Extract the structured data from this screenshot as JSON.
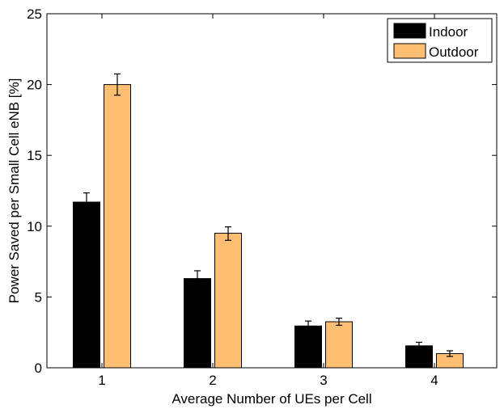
{
  "chart_data": {
    "type": "bar",
    "title": "",
    "xlabel": "Average Number of UEs per Cell",
    "ylabel": "Power Saved per Small Cell eNB [%]",
    "categories": [
      "1",
      "2",
      "3",
      "4"
    ],
    "ylim": [
      0,
      25
    ],
    "yticks": [
      "0",
      "5",
      "10",
      "15",
      "20",
      "25"
    ],
    "grid": false,
    "legend_position": "top-right",
    "series": [
      {
        "name": "Indoor",
        "color": "#000000",
        "values": [
          11.7,
          6.3,
          2.95,
          1.55
        ],
        "error_low": [
          11.05,
          5.8,
          2.6,
          1.35
        ],
        "error_high": [
          12.35,
          6.85,
          3.3,
          1.8
        ]
      },
      {
        "name": "Outdoor",
        "color": "#ffbf73",
        "values": [
          20.0,
          9.5,
          3.25,
          1.0
        ],
        "error_low": [
          19.25,
          9.0,
          3.0,
          0.8
        ],
        "error_high": [
          20.75,
          9.95,
          3.5,
          1.2
        ]
      }
    ]
  }
}
